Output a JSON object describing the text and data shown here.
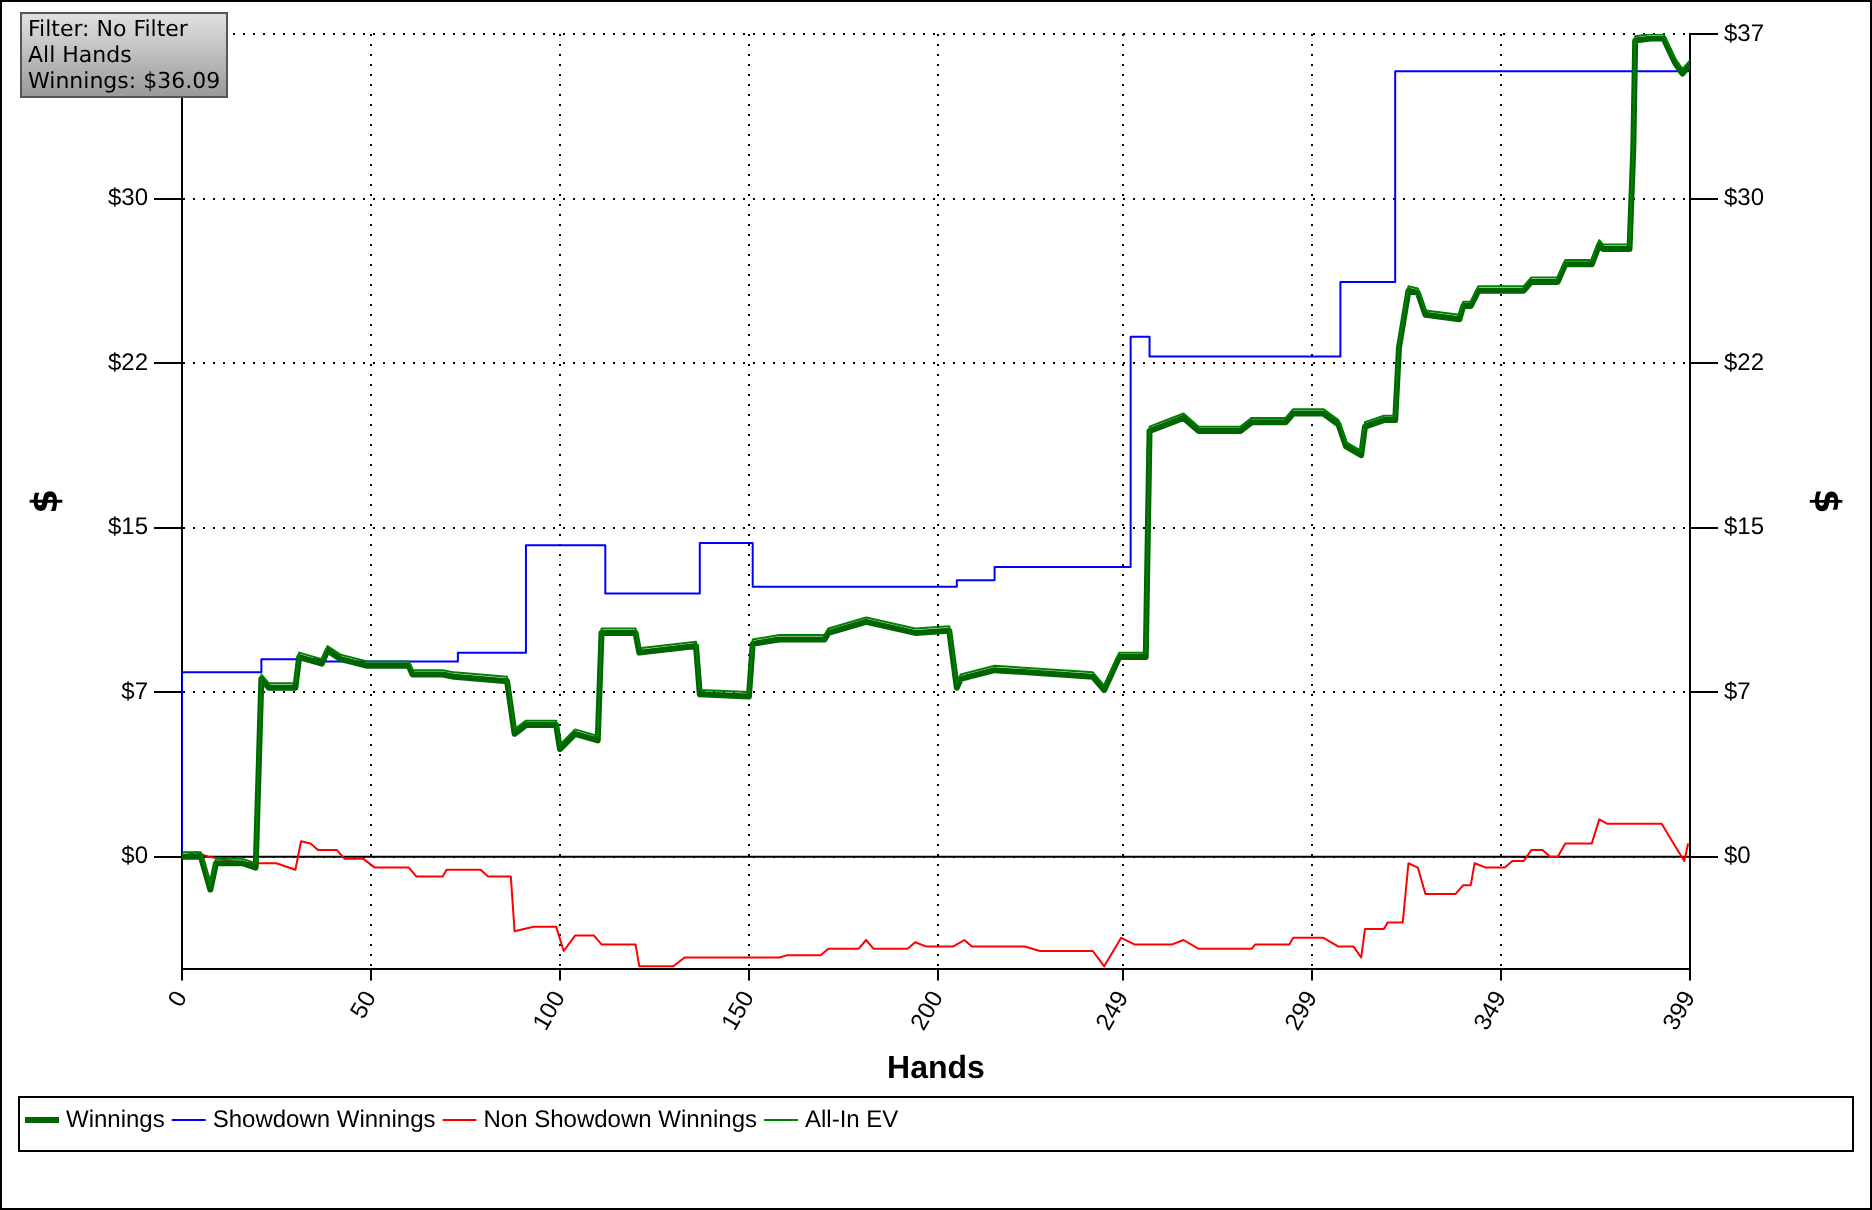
{
  "chart_data": {
    "type": "line",
    "xlabel": "Hands",
    "ylabel": "$",
    "y2label": "$",
    "annotations": [
      "Filter: No Filter",
      "All Hands",
      "Winnings: $36.09"
    ],
    "xlim": [
      0,
      399
    ],
    "xticks": [
      0,
      50,
      100,
      150,
      200,
      249,
      299,
      349,
      399
    ],
    "ylim": [
      -5.1,
      37.5
    ],
    "yticks": [
      {
        "value": 0,
        "label": "$0"
      },
      {
        "value": 7.5,
        "label": "$7"
      },
      {
        "value": 15,
        "label": "$15"
      },
      {
        "value": 22.5,
        "label": "$22"
      },
      {
        "value": 30,
        "label": "$30"
      },
      {
        "value": 37.5,
        "label": null
      }
    ],
    "y2lim": [
      -5.1,
      37.5
    ],
    "y2ticks": [
      {
        "value": 0,
        "label": "$0"
      },
      {
        "value": 7.5,
        "label": "$7"
      },
      {
        "value": 15,
        "label": "$15"
      },
      {
        "value": 22.5,
        "label": "$22"
      },
      {
        "value": 30,
        "label": "$30"
      },
      {
        "value": 37.5,
        "label": "$37"
      }
    ],
    "grid": true,
    "legend": "bottom",
    "marker": "none",
    "ref_lines": [
      {
        "axis": "y",
        "value": 0,
        "color": "#000000"
      }
    ],
    "series": [
      {
        "name": "Winnings",
        "type": "line",
        "color": "#006400",
        "x": [
          0,
          5,
          7.5,
          9,
          16,
          19.5,
          21,
          23,
          30,
          31,
          37,
          38.5,
          42,
          49,
          60,
          61,
          69,
          72,
          86,
          88,
          91,
          99,
          100,
          104,
          110,
          111,
          120,
          121,
          136,
          137,
          150,
          151,
          158,
          170,
          171,
          181,
          194,
          203,
          205,
          206,
          215,
          241,
          244,
          248,
          255,
          256,
          259,
          265,
          269,
          280,
          283,
          292,
          294,
          302,
          306,
          308,
          312,
          313,
          318,
          321,
          322,
          324.5,
          327,
          329,
          338,
          339,
          341,
          343,
          355,
          357,
          364,
          366,
          373,
          375,
          376,
          383,
          384,
          384.5,
          389,
          392,
          395,
          397,
          399
        ],
        "values": [
          0,
          0,
          -1.5,
          -0.3,
          -0.3,
          -0.5,
          8.1,
          7.7,
          7.7,
          9.1,
          8.8,
          9.4,
          9.0,
          8.7,
          8.7,
          8.3,
          8.3,
          8.2,
          8.0,
          5.6,
          6.0,
          6.0,
          4.9,
          5.6,
          5.3,
          10.2,
          10.2,
          9.3,
          9.6,
          7.4,
          7.3,
          9.7,
          9.9,
          9.9,
          10.2,
          10.7,
          10.2,
          10.3,
          7.7,
          8.1,
          8.5,
          8.2,
          7.6,
          9.1,
          9.1,
          19.4,
          19.6,
          20.0,
          19.4,
          19.4,
          19.8,
          19.8,
          20.2,
          20.2,
          19.7,
          18.7,
          18.3,
          19.6,
          19.9,
          19.9,
          23.2,
          25.8,
          25.7,
          24.7,
          24.5,
          25.1,
          25.1,
          25.8,
          25.8,
          26.2,
          26.2,
          27.0,
          27.0,
          27.9,
          27.7,
          27.7,
          32.3,
          37.2,
          37.3,
          37.3,
          36.2,
          35.7,
          36.1
        ]
      },
      {
        "name": "Showdown Winnings",
        "type": "step",
        "color": "#0000ff",
        "x": [
          0,
          21,
          38,
          73,
          91,
          112,
          137,
          151,
          205,
          215,
          251,
          256,
          306.5,
          321,
          383.5,
          399
        ],
        "values": [
          0,
          8.4,
          9.0,
          8.9,
          9.3,
          14.2,
          12.0,
          14.3,
          12.3,
          12.6,
          13.2,
          23.7,
          22.8,
          26.2,
          35.8,
          35.8
        ]
      },
      {
        "name": "Non Showdown Winnings",
        "type": "line",
        "color": "#ff0000",
        "x": [
          0,
          3.5,
          7,
          16,
          25,
          30,
          31.5,
          34,
          36,
          41,
          43,
          48,
          51,
          60,
          62,
          69,
          70,
          79,
          81,
          87,
          88,
          93,
          99,
          101,
          104,
          109,
          111,
          120,
          121,
          130,
          133,
          146,
          149,
          158,
          160,
          169,
          171,
          179,
          181,
          183,
          192,
          194,
          197,
          204,
          207,
          209,
          223,
          227,
          241,
          244,
          248.5,
          252,
          262,
          265,
          269,
          283,
          284,
          293,
          294,
          302,
          306,
          310,
          312,
          313,
          318,
          319,
          323,
          324.5,
          327,
          329,
          337,
          339,
          341,
          342,
          345,
          350,
          352,
          355,
          357,
          360,
          362,
          364,
          366,
          373,
          375,
          377,
          387,
          389,
          391.5,
          395,
          397.5,
          398.5
        ],
        "values": [
          0,
          0.2,
          0,
          -0.3,
          -0.3,
          -0.6,
          0.7,
          0.6,
          0.3,
          0.3,
          -0.1,
          -0.1,
          -0.5,
          -0.5,
          -0.9,
          -0.9,
          -0.6,
          -0.6,
          -0.9,
          -0.9,
          -3.4,
          -3.2,
          -3.2,
          -4.3,
          -3.6,
          -3.6,
          -4.0,
          -4.0,
          -5.0,
          -5.0,
          -4.6,
          -4.6,
          -4.6,
          -4.6,
          -4.5,
          -4.5,
          -4.2,
          -4.2,
          -3.8,
          -4.2,
          -4.2,
          -3.9,
          -4.1,
          -4.1,
          -3.8,
          -4.1,
          -4.1,
          -4.3,
          -4.3,
          -5.0,
          -3.7,
          -4.0,
          -4.0,
          -3.8,
          -4.2,
          -4.2,
          -4.0,
          -4.0,
          -3.7,
          -3.7,
          -4.1,
          -4.1,
          -4.6,
          -3.3,
          -3.3,
          -3.0,
          -3.0,
          -0.3,
          -0.5,
          -1.7,
          -1.7,
          -1.3,
          -1.3,
          -0.3,
          -0.5,
          -0.5,
          -0.2,
          -0.2,
          0.3,
          0.3,
          0,
          0,
          0.6,
          0.6,
          1.7,
          1.5,
          1.5,
          1.5,
          1.5,
          0.5,
          -0.2,
          0.6
        ]
      },
      {
        "name": "All-In EV",
        "type": "line",
        "color": "#008000",
        "x": [
          0,
          5,
          7.5,
          9,
          16,
          19.5,
          21,
          23,
          30,
          31,
          37,
          38.5,
          42,
          49,
          60,
          61,
          69,
          72,
          86,
          88,
          91,
          99,
          100,
          104,
          110,
          111,
          120,
          121,
          136,
          137,
          150,
          151,
          158,
          170,
          171,
          181,
          194,
          203,
          205,
          206,
          215,
          241,
          244,
          248,
          255,
          256,
          259,
          265,
          269,
          280,
          283,
          292,
          294,
          302,
          306,
          308,
          312,
          313,
          318,
          321,
          322,
          324.5,
          327,
          329,
          338,
          339,
          341,
          343,
          355,
          357,
          364,
          366,
          373,
          375,
          376,
          383,
          384,
          384.5,
          389,
          392,
          395,
          397,
          399
        ],
        "values": [
          0.2,
          0.2,
          -1.3,
          -0.1,
          -0.1,
          -0.3,
          8.3,
          7.9,
          7.9,
          9.3,
          9.0,
          9.6,
          9.2,
          8.9,
          8.9,
          8.5,
          8.5,
          8.4,
          8.2,
          5.8,
          6.2,
          6.2,
          5.1,
          5.8,
          5.5,
          10.4,
          10.4,
          9.5,
          9.8,
          7.6,
          7.5,
          9.9,
          10.1,
          10.1,
          10.4,
          10.9,
          10.4,
          10.5,
          7.9,
          8.3,
          8.7,
          8.4,
          7.8,
          9.3,
          9.3,
          19.6,
          19.8,
          20.2,
          19.6,
          19.6,
          20.0,
          20.0,
          20.4,
          20.4,
          19.9,
          18.9,
          18.5,
          19.8,
          20.1,
          20.1,
          23.4,
          26.0,
          25.9,
          24.9,
          24.7,
          25.3,
          25.3,
          26.0,
          26.0,
          26.4,
          26.4,
          27.2,
          27.2,
          28.1,
          27.9,
          27.9,
          32.5,
          37.4,
          37.5,
          37.5,
          36.4,
          35.9,
          36.3
        ]
      }
    ]
  }
}
